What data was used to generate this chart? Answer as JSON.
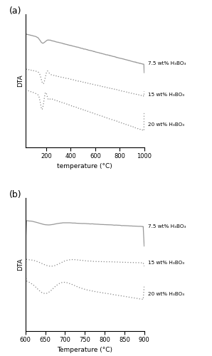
{
  "panel_a": {
    "xlabel": "temperature (°C)",
    "ylabel": "DTA",
    "xlim": [
      30,
      1000
    ],
    "xticks": [
      200,
      400,
      600,
      800,
      1000
    ],
    "label_75": "7.5 wt% H₃BO₃",
    "label_15": "15 wt% H₃BO₃",
    "label_20": "20 wt% H₃BO₃",
    "panel_label": "(a)"
  },
  "panel_b": {
    "xlabel": "Temperature (°C)",
    "ylabel": "DTA",
    "xlim": [
      600,
      900
    ],
    "xticks": [
      600,
      650,
      700,
      750,
      800,
      850,
      900
    ],
    "label_75": "7.5 wt% H₃BO₃",
    "label_15": "15 wt% H₃BO₃",
    "label_20": "20 wt% H₃BO₃",
    "panel_label": "(b)"
  },
  "line_color_solid": "#999999",
  "line_color_dot": "#888888",
  "bg_color": "#ffffff"
}
